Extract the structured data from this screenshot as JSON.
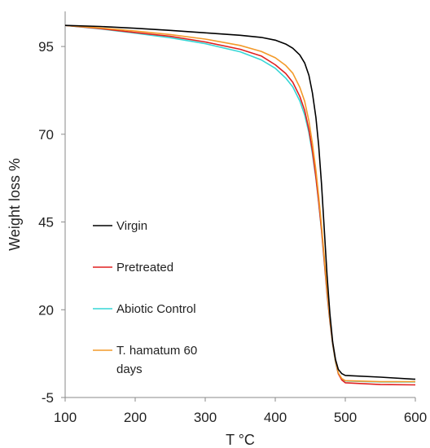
{
  "chart_data": {
    "type": "line",
    "title": "",
    "xlabel": "T °C",
    "ylabel": "Weight loss %",
    "xlim": [
      100,
      600
    ],
    "ylim": [
      -5,
      105
    ],
    "xticks": [
      100,
      200,
      300,
      400,
      500,
      600
    ],
    "yticks": [
      -5,
      20,
      45,
      70,
      95
    ],
    "grid": false,
    "legend_position": "left",
    "series": [
      {
        "name": "Virgin",
        "color": "#000000",
        "points": [
          [
            100,
            101
          ],
          [
            150,
            100.7
          ],
          [
            200,
            100.2
          ],
          [
            250,
            99.6
          ],
          [
            300,
            98.9
          ],
          [
            350,
            98.2
          ],
          [
            380,
            97.6
          ],
          [
            400,
            96.8
          ],
          [
            415,
            95.7
          ],
          [
            425,
            94.5
          ],
          [
            435,
            92.6
          ],
          [
            442,
            90.3
          ],
          [
            448,
            86.8
          ],
          [
            453,
            81.8
          ],
          [
            458,
            74.8
          ],
          [
            462,
            66.8
          ],
          [
            466,
            55.8
          ],
          [
            470,
            42.8
          ],
          [
            474,
            29.8
          ],
          [
            478,
            18.8
          ],
          [
            482,
            10.8
          ],
          [
            486,
            5.8
          ],
          [
            490,
            3.0
          ],
          [
            495,
            1.8
          ],
          [
            500,
            1.3
          ],
          [
            550,
            0.8
          ],
          [
            600,
            0.2
          ]
        ]
      },
      {
        "name": "Pretreated",
        "color": "#e02020",
        "points": [
          [
            100,
            101
          ],
          [
            150,
            100.1
          ],
          [
            200,
            99.0
          ],
          [
            250,
            97.9
          ],
          [
            300,
            96.3
          ],
          [
            350,
            94.2
          ],
          [
            380,
            92.3
          ],
          [
            400,
            89.8
          ],
          [
            415,
            87.3
          ],
          [
            425,
            84.8
          ],
          [
            435,
            80.8
          ],
          [
            442,
            76.8
          ],
          [
            448,
            71.3
          ],
          [
            453,
            65.3
          ],
          [
            458,
            57.8
          ],
          [
            462,
            50.8
          ],
          [
            466,
            42.8
          ],
          [
            470,
            33.8
          ],
          [
            474,
            24.8
          ],
          [
            478,
            16.8
          ],
          [
            482,
            10.3
          ],
          [
            486,
            5.3
          ],
          [
            490,
            1.8
          ],
          [
            495,
            0.0
          ],
          [
            500,
            -0.8
          ],
          [
            550,
            -1.3
          ],
          [
            600,
            -1.4
          ]
        ]
      },
      {
        "name": "Abiotic Control",
        "color": "#36d6d6",
        "points": [
          [
            100,
            101
          ],
          [
            150,
            100.0
          ],
          [
            200,
            98.8
          ],
          [
            250,
            97.5
          ],
          [
            300,
            95.8
          ],
          [
            350,
            93.5
          ],
          [
            380,
            91.2
          ],
          [
            400,
            88.8
          ],
          [
            415,
            86.0
          ],
          [
            425,
            83.5
          ],
          [
            435,
            79.5
          ],
          [
            442,
            75.5
          ],
          [
            448,
            70.5
          ],
          [
            453,
            64.5
          ],
          [
            458,
            57.5
          ],
          [
            462,
            50.5
          ],
          [
            466,
            42.5
          ],
          [
            470,
            33.5
          ],
          [
            474,
            24.5
          ],
          [
            478,
            16.5
          ],
          [
            482,
            10.0
          ],
          [
            486,
            5.0
          ],
          [
            490,
            1.8
          ],
          [
            495,
            0.2
          ],
          [
            500,
            -0.3
          ],
          [
            550,
            -0.6
          ],
          [
            600,
            -0.6
          ]
        ]
      },
      {
        "name": "T. hamatum 60 days",
        "color": "#f39a2a",
        "points": [
          [
            100,
            101
          ],
          [
            150,
            100.3
          ],
          [
            200,
            99.4
          ],
          [
            250,
            98.4
          ],
          [
            300,
            97.1
          ],
          [
            350,
            95.3
          ],
          [
            380,
            93.6
          ],
          [
            400,
            91.8
          ],
          [
            415,
            89.6
          ],
          [
            425,
            87.4
          ],
          [
            435,
            83.4
          ],
          [
            442,
            79.4
          ],
          [
            448,
            73.8
          ],
          [
            453,
            67.4
          ],
          [
            458,
            59.8
          ],
          [
            462,
            52.4
          ],
          [
            466,
            44.0
          ],
          [
            470,
            34.8
          ],
          [
            474,
            25.8
          ],
          [
            478,
            17.4
          ],
          [
            482,
            10.6
          ],
          [
            486,
            5.4
          ],
          [
            490,
            2.0
          ],
          [
            495,
            0.4
          ],
          [
            500,
            -0.2
          ],
          [
            550,
            -0.5
          ],
          [
            600,
            -0.5
          ]
        ]
      }
    ]
  }
}
